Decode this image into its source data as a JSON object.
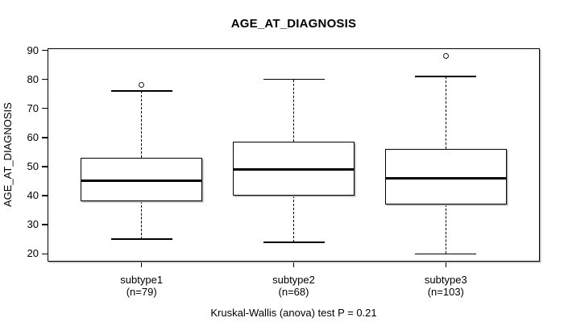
{
  "title": "AGE_AT_DIAGNOSIS",
  "caption": "Kruskal-Wallis (anova) test P = 0.21",
  "colors": {
    "line": "#000000",
    "background": "#ffffff"
  },
  "chart_data": {
    "type": "boxplot",
    "title": "AGE_AT_DIAGNOSIS",
    "ylabel": "AGE_AT_DIAGNOSIS",
    "xlabel": "",
    "ylim": [
      17.3,
      90.7
    ],
    "yticks": [
      20,
      30,
      40,
      50,
      60,
      70,
      80,
      90
    ],
    "grid": false,
    "categories": [
      "subtype1",
      "subtype2",
      "subtype3"
    ],
    "category_sublabels": [
      "(n=79)",
      "(n=68)",
      "(n=103)"
    ],
    "series": [
      {
        "name": "subtype1",
        "n": 79,
        "whisker_low": 25,
        "q1": 38,
        "median": 45,
        "q3": 53,
        "whisker_high": 76,
        "outliers": [
          78
        ]
      },
      {
        "name": "subtype2",
        "n": 68,
        "whisker_low": 24,
        "q1": 40,
        "median": 49,
        "q3": 58.5,
        "whisker_high": 80,
        "outliers": []
      },
      {
        "name": "subtype3",
        "n": 103,
        "whisker_low": 20,
        "q1": 37,
        "median": 46,
        "q3": 56,
        "whisker_high": 81,
        "outliers": [
          88
        ]
      }
    ],
    "annotation": "Kruskal-Wallis (anova) test P = 0.21"
  }
}
